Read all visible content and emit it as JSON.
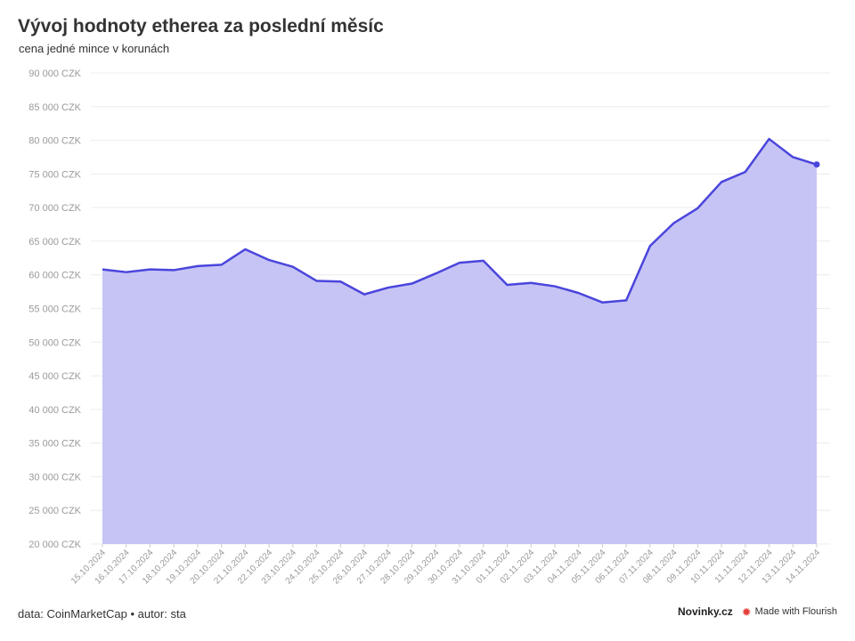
{
  "title": "Vývoj hodnoty etherea za poslední měsíc",
  "subtitle": "cena jedné mince v korunách",
  "footer": {
    "source": "data: CoinMarketCap • autor: sta",
    "brand": "Novinky.cz",
    "flourish": "Made with Flourish"
  },
  "chart_data": {
    "type": "area",
    "title": "Vývoj hodnoty etherea za poslední měsíc",
    "subtitle": "cena jedné mince v korunách",
    "xlabel": "",
    "ylabel": "",
    "ylim": [
      20000,
      90000
    ],
    "yticks": [
      20000,
      25000,
      30000,
      35000,
      40000,
      45000,
      50000,
      55000,
      60000,
      65000,
      70000,
      75000,
      80000,
      85000,
      90000
    ],
    "ytick_labels": [
      "20 000 CZK",
      "25 000 CZK",
      "30 000 CZK",
      "35 000 CZK",
      "40 000 CZK",
      "45 000 CZK",
      "50 000 CZK",
      "55 000 CZK",
      "60 000 CZK",
      "65 000 CZK",
      "70 000 CZK",
      "75 000 CZK",
      "80 000 CZK",
      "85 000 CZK",
      "90 000 CZK"
    ],
    "grid": true,
    "line_color": "#4a45dc",
    "fill_color": "#c6c4f5",
    "categories": [
      "15.10.2024",
      "16.10.2024",
      "17.10.2024",
      "18.10.2024",
      "19.10.2024",
      "20.10.2024",
      "21.10.2024",
      "22.10.2024",
      "23.10.2024",
      "24.10.2024",
      "25.10.2024",
      "26.10.2024",
      "27.10.2024",
      "28.10.2024",
      "29.10.2024",
      "30.10.2024",
      "31.10.2024",
      "01.11.2024",
      "02.11.2024",
      "03.11.2024",
      "04.11.2024",
      "05.11.2024",
      "06.11.2024",
      "07.11.2024",
      "08.11.2024",
      "09.11.2024",
      "10.11.2024",
      "11.11.2024",
      "12.11.2024",
      "13.11.2024",
      "14.11.2024"
    ],
    "values": [
      60800,
      60400,
      60800,
      60700,
      61300,
      61500,
      63800,
      62200,
      61200,
      59100,
      59000,
      57100,
      58100,
      58700,
      60200,
      61800,
      62100,
      58500,
      58800,
      58300,
      57300,
      55900,
      56200,
      64300,
      67700,
      69900,
      73800,
      75300,
      80200,
      77500,
      76400
    ]
  }
}
